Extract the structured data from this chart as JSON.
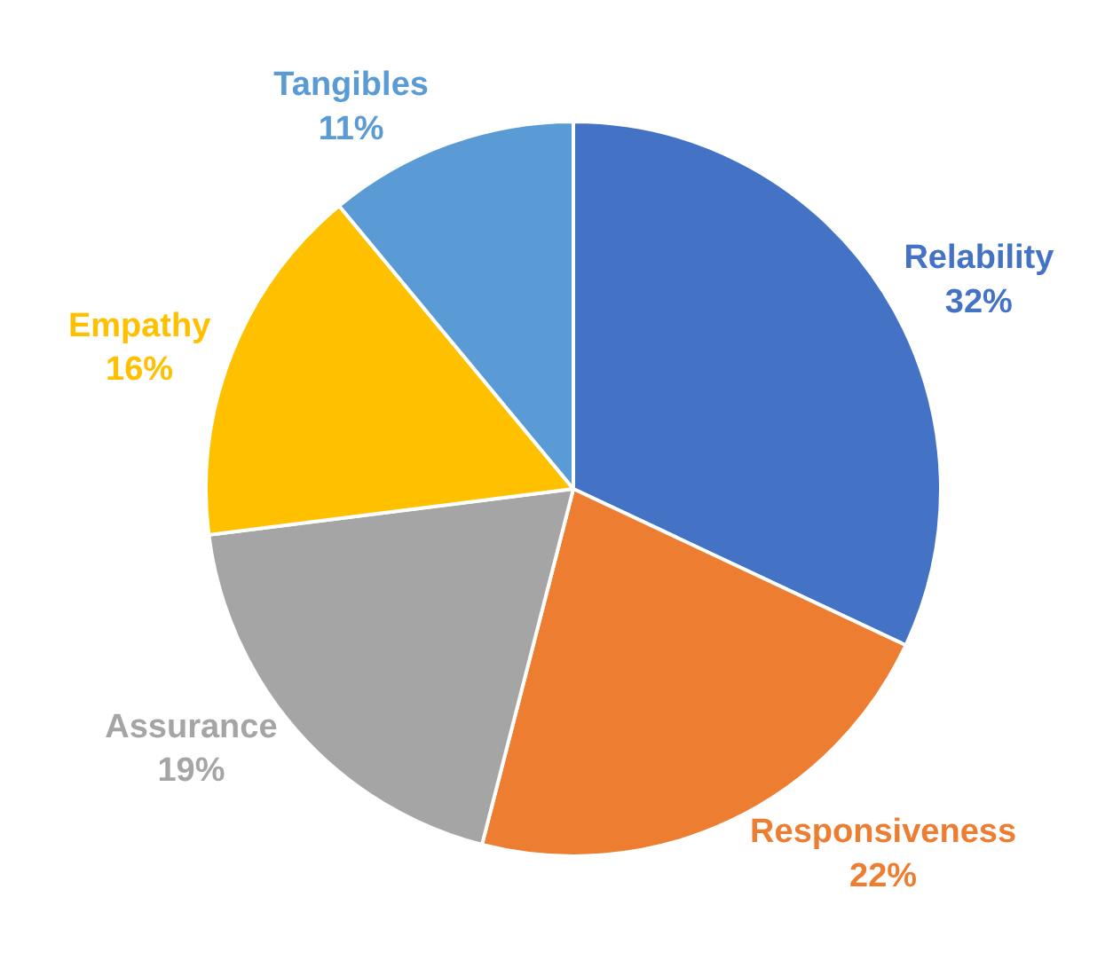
{
  "chart_data": {
    "type": "pie",
    "categories": [
      "Relability",
      "Responsiveness",
      "Assurance",
      "Empathy",
      "Tangibles"
    ],
    "values": [
      32,
      22,
      19,
      16,
      11
    ],
    "colors": [
      "#4472c4",
      "#ed7d31",
      "#a5a5a5",
      "#ffc000",
      "#5b9bd5"
    ],
    "value_labels": [
      "32%",
      "22%",
      "19%",
      "16%",
      "11%"
    ],
    "legend": false
  }
}
